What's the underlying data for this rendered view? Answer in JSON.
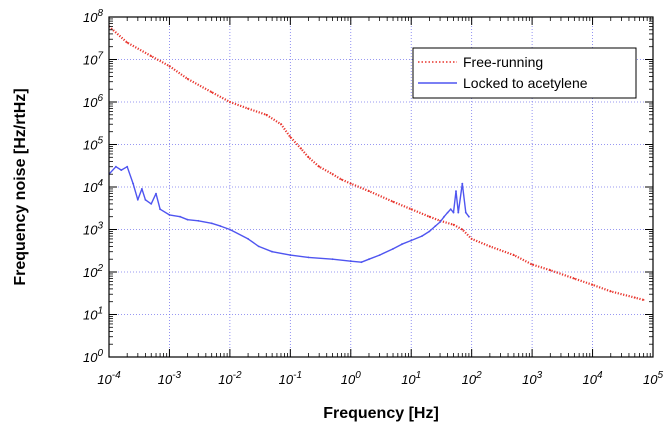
{
  "chart_data": {
    "type": "line",
    "title": "",
    "xlabel": "Frequency [Hz]",
    "ylabel": "Frequency noise [Hz/rtHz]",
    "xscale": "log",
    "yscale": "log",
    "xlim": [
      0.0001,
      100000
    ],
    "ylim": [
      1,
      100000000
    ],
    "grid": true,
    "legend_position": "top-right",
    "x_ticks": [
      {
        "base": "10",
        "exp": "-4"
      },
      {
        "base": "10",
        "exp": "-3"
      },
      {
        "base": "10",
        "exp": "-2"
      },
      {
        "base": "10",
        "exp": "-1"
      },
      {
        "base": "10",
        "exp": "0"
      },
      {
        "base": "10",
        "exp": "1"
      },
      {
        "base": "10",
        "exp": "2"
      },
      {
        "base": "10",
        "exp": "3"
      },
      {
        "base": "10",
        "exp": "4"
      },
      {
        "base": "10",
        "exp": "5"
      }
    ],
    "y_ticks": [
      {
        "base": "10",
        "exp": "0"
      },
      {
        "base": "10",
        "exp": "1"
      },
      {
        "base": "10",
        "exp": "2"
      },
      {
        "base": "10",
        "exp": "3"
      },
      {
        "base": "10",
        "exp": "4"
      },
      {
        "base": "10",
        "exp": "5"
      },
      {
        "base": "10",
        "exp": "6"
      },
      {
        "base": "10",
        "exp": "7"
      },
      {
        "base": "10",
        "exp": "8"
      }
    ],
    "series": [
      {
        "name": "Free-running",
        "color": "#e8342c",
        "style": "dotted",
        "x": [
          0.0001,
          0.0002,
          0.0005,
          0.001,
          0.002,
          0.005,
          0.01,
          0.02,
          0.04,
          0.07,
          0.1,
          0.15,
          0.2,
          0.3,
          0.5,
          0.7,
          1,
          2,
          5,
          10,
          20,
          30,
          50,
          70,
          100,
          200,
          500,
          1000,
          2000,
          5000,
          10000,
          20000,
          50000,
          70000
        ],
        "y": [
          60000000,
          25000000,
          12000000,
          7000000,
          3500000,
          1700000,
          1000000,
          700000,
          500000,
          300000,
          150000,
          80000,
          50000,
          30000,
          20000,
          15000,
          12000,
          8000,
          4500,
          3000,
          2000,
          1600,
          1300,
          1000,
          600,
          400,
          250,
          150,
          110,
          70,
          50,
          35,
          25,
          22
        ]
      },
      {
        "name": "Locked to acetylene",
        "color": "#4f55f0",
        "style": "solid",
        "x": [
          0.0001,
          0.00013,
          0.00016,
          0.0002,
          0.00025,
          0.0003,
          0.00035,
          0.0004,
          0.0005,
          0.0006,
          0.0007,
          0.001,
          0.0015,
          0.002,
          0.003,
          0.005,
          0.007,
          0.01,
          0.02,
          0.03,
          0.05,
          0.1,
          0.2,
          0.5,
          1,
          1.5,
          2,
          3,
          5,
          7,
          10,
          15,
          20,
          25,
          30,
          35,
          40,
          45,
          50,
          55,
          60,
          70,
          80,
          90
        ],
        "y": [
          20000,
          30000,
          25000,
          30000,
          12000,
          5000,
          9000,
          5000,
          4000,
          7000,
          3000,
          2200,
          2000,
          1700,
          1600,
          1400,
          1200,
          1000,
          600,
          400,
          300,
          250,
          220,
          200,
          180,
          170,
          200,
          250,
          350,
          450,
          550,
          700,
          900,
          1200,
          1500,
          2000,
          2500,
          3000,
          2500,
          8000,
          2500,
          12000,
          2500,
          2000
        ]
      }
    ]
  }
}
